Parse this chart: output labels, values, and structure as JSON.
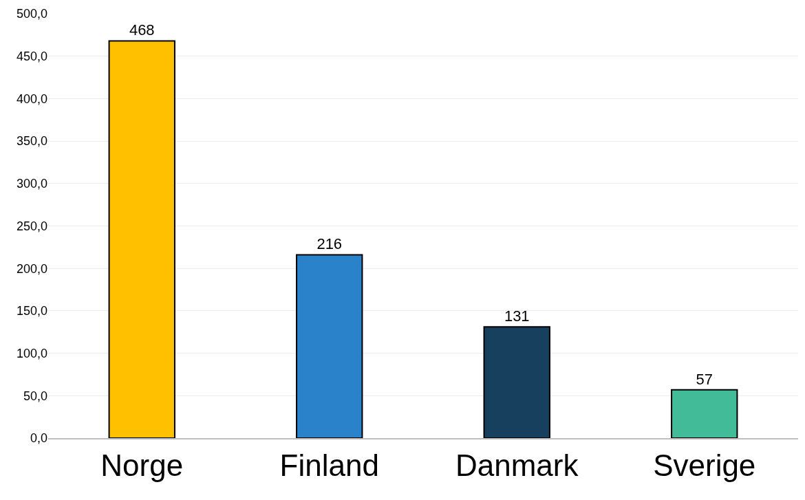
{
  "chart_data": {
    "type": "bar",
    "categories": [
      "Norge",
      "Finland",
      "Danmark",
      "Sverige"
    ],
    "values": [
      468,
      216,
      131,
      57
    ],
    "colors": [
      "#ffc000",
      "#2a82ca",
      "#17405f",
      "#41bb98"
    ],
    "data_labels": true,
    "ylim": [
      0,
      500
    ],
    "yticks": [
      {
        "value": 0,
        "label": "0,0"
      },
      {
        "value": 50,
        "label": "50,0"
      },
      {
        "value": 100,
        "label": "100,0"
      },
      {
        "value": 150,
        "label": "150,0"
      },
      {
        "value": 200,
        "label": "200,0"
      },
      {
        "value": 250,
        "label": "250,0"
      },
      {
        "value": 300,
        "label": "300,0"
      },
      {
        "value": 350,
        "label": "350,0"
      },
      {
        "value": 400,
        "label": "400,0"
      },
      {
        "value": 450,
        "label": "450,0"
      },
      {
        "value": 500,
        "label": "500,0"
      }
    ],
    "grid": "y",
    "legend": false
  }
}
